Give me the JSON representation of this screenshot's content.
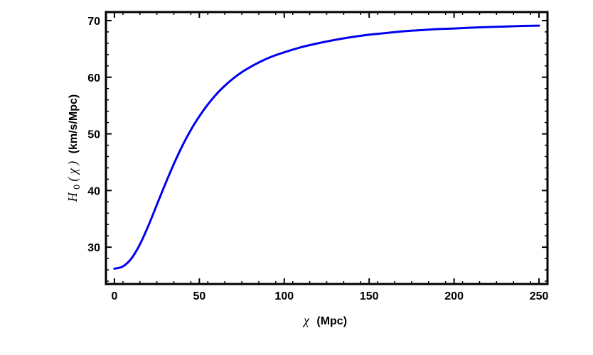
{
  "chart_data": {
    "type": "line",
    "title": "",
    "xlabel": {
      "symbol": "χ",
      "unit": "(Mpc)"
    },
    "ylabel": {
      "symbol": "H",
      "subscript": "0",
      "argument": "χ",
      "unit": "(km/s/Mpc)"
    },
    "xlim": [
      -5,
      255
    ],
    "ylim": [
      23.5,
      71.5
    ],
    "xticks": [
      0,
      50,
      100,
      150,
      200,
      250
    ],
    "yticks": [
      30,
      40,
      50,
      60,
      70
    ],
    "x_tick_labels": [
      "0",
      "50",
      "100",
      "150",
      "200",
      "250"
    ],
    "y_tick_labels": [
      "30",
      "40",
      "50",
      "60",
      "70"
    ],
    "grid": false,
    "legend": "none",
    "series": [
      {
        "color": "#0000ee",
        "x": [
          0,
          5,
          10,
          15,
          20,
          25,
          30,
          35,
          40,
          45,
          50,
          55,
          60,
          65,
          70,
          75,
          80,
          85,
          90,
          95,
          100,
          110,
          120,
          130,
          140,
          150,
          160,
          170,
          180,
          190,
          200,
          210,
          220,
          230,
          240,
          250
        ],
        "y": [
          26.2,
          26.6,
          28.0,
          30.5,
          33.8,
          37.5,
          41.2,
          44.7,
          47.9,
          50.7,
          53.1,
          55.2,
          57.0,
          58.5,
          59.8,
          60.9,
          61.8,
          62.6,
          63.3,
          63.9,
          64.4,
          65.3,
          66.0,
          66.6,
          67.1,
          67.5,
          67.8,
          68.1,
          68.3,
          68.5,
          68.6,
          68.75,
          68.85,
          68.95,
          69.05,
          69.1
        ]
      }
    ]
  }
}
